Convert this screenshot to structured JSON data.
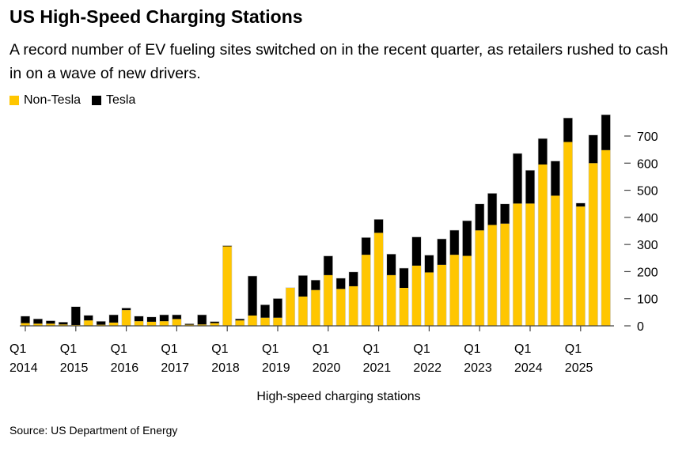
{
  "header": {
    "title": "US High-Speed Charging Stations",
    "subtitle": "A record number of EV fueling sites switched on in the recent quarter, as retailers rushed to cash in on a wave of new drivers."
  },
  "source": "Source: US Department of Energy",
  "chart_data": {
    "type": "bar",
    "stacked": true,
    "xlabel": "High-speed charging stations",
    "ylabel": "",
    "ylim": [
      0,
      790
    ],
    "y_axis_position": "right",
    "y_ticks": [
      0,
      100,
      200,
      300,
      400,
      500,
      600,
      700
    ],
    "x_tick_labels": [
      {
        "label": "Q1",
        "year": "2014"
      },
      {
        "label": "Q1",
        "year": "2015"
      },
      {
        "label": "Q1",
        "year": "2016"
      },
      {
        "label": "Q1",
        "year": "2017"
      },
      {
        "label": "Q1",
        "year": "2018"
      },
      {
        "label": "Q1",
        "year": "2019"
      },
      {
        "label": "Q1",
        "year": "2020"
      },
      {
        "label": "Q1",
        "year": "2021"
      },
      {
        "label": "Q1",
        "year": "2022"
      },
      {
        "label": "Q1",
        "year": "2023"
      },
      {
        "label": "Q1",
        "year": "2024"
      },
      {
        "label": "Q1",
        "year": "2025"
      }
    ],
    "categories": [
      "Q1 2014",
      "Q2 2014",
      "Q3 2014",
      "Q4 2014",
      "Q1 2015",
      "Q2 2015",
      "Q3 2015",
      "Q4 2015",
      "Q1 2016",
      "Q2 2016",
      "Q3 2016",
      "Q4 2016",
      "Q1 2017",
      "Q2 2017",
      "Q3 2017",
      "Q4 2017",
      "Q1 2018",
      "Q2 2018",
      "Q3 2018",
      "Q4 2018",
      "Q1 2019",
      "Q2 2019",
      "Q3 2019",
      "Q4 2019",
      "Q1 2020",
      "Q2 2020",
      "Q3 2020",
      "Q4 2020",
      "Q1 2021",
      "Q2 2021",
      "Q3 2021",
      "Q4 2021",
      "Q1 2022",
      "Q2 2022",
      "Q3 2022",
      "Q4 2022",
      "Q1 2023",
      "Q2 2023",
      "Q3 2023",
      "Q4 2023",
      "Q1 2024",
      "Q2 2024",
      "Q3 2024",
      "Q4 2024",
      "Q1 2025",
      "Q2 2025",
      "Q3 2025"
    ],
    "legend_position": "top-left",
    "grid": false,
    "series": [
      {
        "name": "Non-Tesla",
        "color": "#FFC600",
        "values": [
          10,
          8,
          8,
          5,
          3,
          20,
          4,
          12,
          58,
          17,
          15,
          17,
          25,
          4,
          5,
          10,
          293,
          20,
          38,
          30,
          30,
          140,
          108,
          132,
          187,
          136,
          146,
          262,
          343,
          187,
          140,
          222,
          197,
          225,
          262,
          258,
          352,
          372,
          377,
          451,
          451,
          595,
          480,
          678,
          440,
          600,
          648
        ]
      },
      {
        "name": "Tesla",
        "color": "#000000",
        "values": [
          25,
          17,
          10,
          8,
          67,
          18,
          12,
          28,
          7,
          18,
          17,
          23,
          15,
          3,
          35,
          5,
          2,
          5,
          145,
          47,
          70,
          0,
          77,
          36,
          70,
          39,
          52,
          63,
          49,
          77,
          72,
          105,
          63,
          95,
          90,
          129,
          97,
          116,
          72,
          184,
          122,
          95,
          127,
          88,
          12,
          103,
          130
        ]
      }
    ]
  }
}
